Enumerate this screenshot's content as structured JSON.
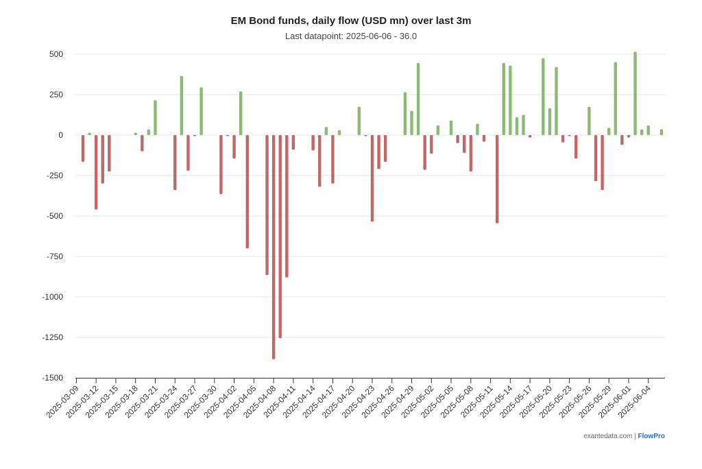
{
  "chart_data": {
    "type": "bar",
    "title": "EM Bond funds, daily flow (USD mn) over last 3m",
    "subtitle": "Last datapoint: 2025-06-06 - 36.0",
    "xlabel": "",
    "ylabel": "",
    "ylim": [
      -1500,
      500
    ],
    "y_ticks": [
      500,
      250,
      0,
      -250,
      -500,
      -750,
      -1000,
      -1250,
      -1500
    ],
    "y_tick_labels": [
      "500",
      "250",
      "0",
      "-250",
      "-500",
      "-750",
      "-1000",
      "-1250",
      "-1500"
    ],
    "grid": true,
    "start_date": "2025-03-10",
    "values": [
      -165,
      15,
      -460,
      -300,
      -225,
      null,
      null,
      null,
      15,
      -100,
      35,
      215,
      null,
      null,
      -340,
      365,
      -220,
      -5,
      295,
      null,
      null,
      -365,
      -5,
      -145,
      270,
      -700,
      null,
      null,
      -865,
      -1385,
      -1255,
      -880,
      -90,
      null,
      null,
      -95,
      -320,
      50,
      -300,
      30,
      null,
      null,
      175,
      -5,
      -535,
      -210,
      -165,
      null,
      null,
      265,
      150,
      445,
      -215,
      -115,
      60,
      null,
      90,
      -50,
      -110,
      -225,
      70,
      -40,
      null,
      -545,
      445,
      430,
      110,
      125,
      -15,
      null,
      475,
      165,
      420,
      -45,
      -5,
      -145,
      null,
      175,
      -285,
      -340,
      45,
      450,
      -60,
      -15,
      515,
      35,
      60,
      null,
      36
    ],
    "x_tick_labels": [
      "2025-03-09",
      "2025-03-12",
      "2025-03-15",
      "2025-03-18",
      "2025-03-21",
      "2025-03-24",
      "2025-03-27",
      "2025-03-30",
      "2025-04-02",
      "2025-04-05",
      "2025-04-08",
      "2025-04-11",
      "2025-04-14",
      "2025-04-17",
      "2025-04-20",
      "2025-04-23",
      "2025-04-26",
      "2025-04-29",
      "2025-05-02",
      "2025-05-05",
      "2025-05-08",
      "2025-05-11",
      "2025-05-14",
      "2025-05-17",
      "2025-05-20",
      "2025-05-23",
      "2025-05-26",
      "2025-05-29",
      "2025-06-01",
      "2025-06-04"
    ],
    "colors": {
      "positive": "#8aba74",
      "negative": "#c06868"
    }
  },
  "footer": {
    "source": "exantedata.com",
    "separator": "|",
    "brand": "FlowPro"
  }
}
